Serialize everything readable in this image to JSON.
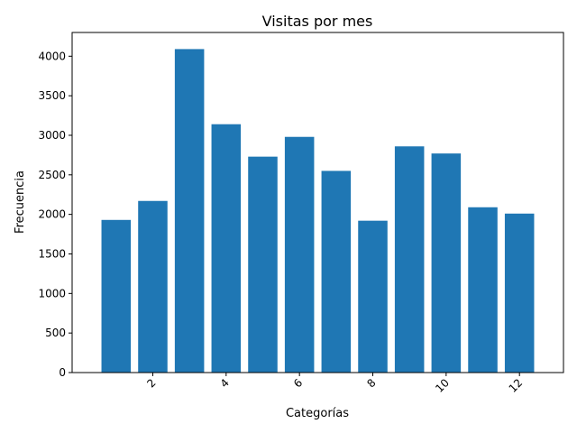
{
  "chart_data": {
    "type": "bar",
    "title": "Visitas por mes",
    "xlabel": "Categorías",
    "ylabel": "Frecuencia",
    "x": [
      1,
      2,
      3,
      4,
      5,
      6,
      7,
      8,
      9,
      10,
      11,
      12
    ],
    "values": [
      1930,
      2170,
      4090,
      3140,
      2730,
      2980,
      2550,
      1920,
      2860,
      2770,
      2090,
      2010
    ],
    "xlim": [
      -0.2,
      13.2
    ],
    "ylim": [
      0,
      4300
    ],
    "x_ticks": [
      2,
      4,
      6,
      8,
      10,
      12
    ],
    "y_ticks": [
      0,
      500,
      1000,
      1500,
      2000,
      2500,
      3000,
      3500,
      4000
    ],
    "x_tick_rotation": 45,
    "bar_color": "#1f77b4",
    "grid": false,
    "legend": "none"
  }
}
